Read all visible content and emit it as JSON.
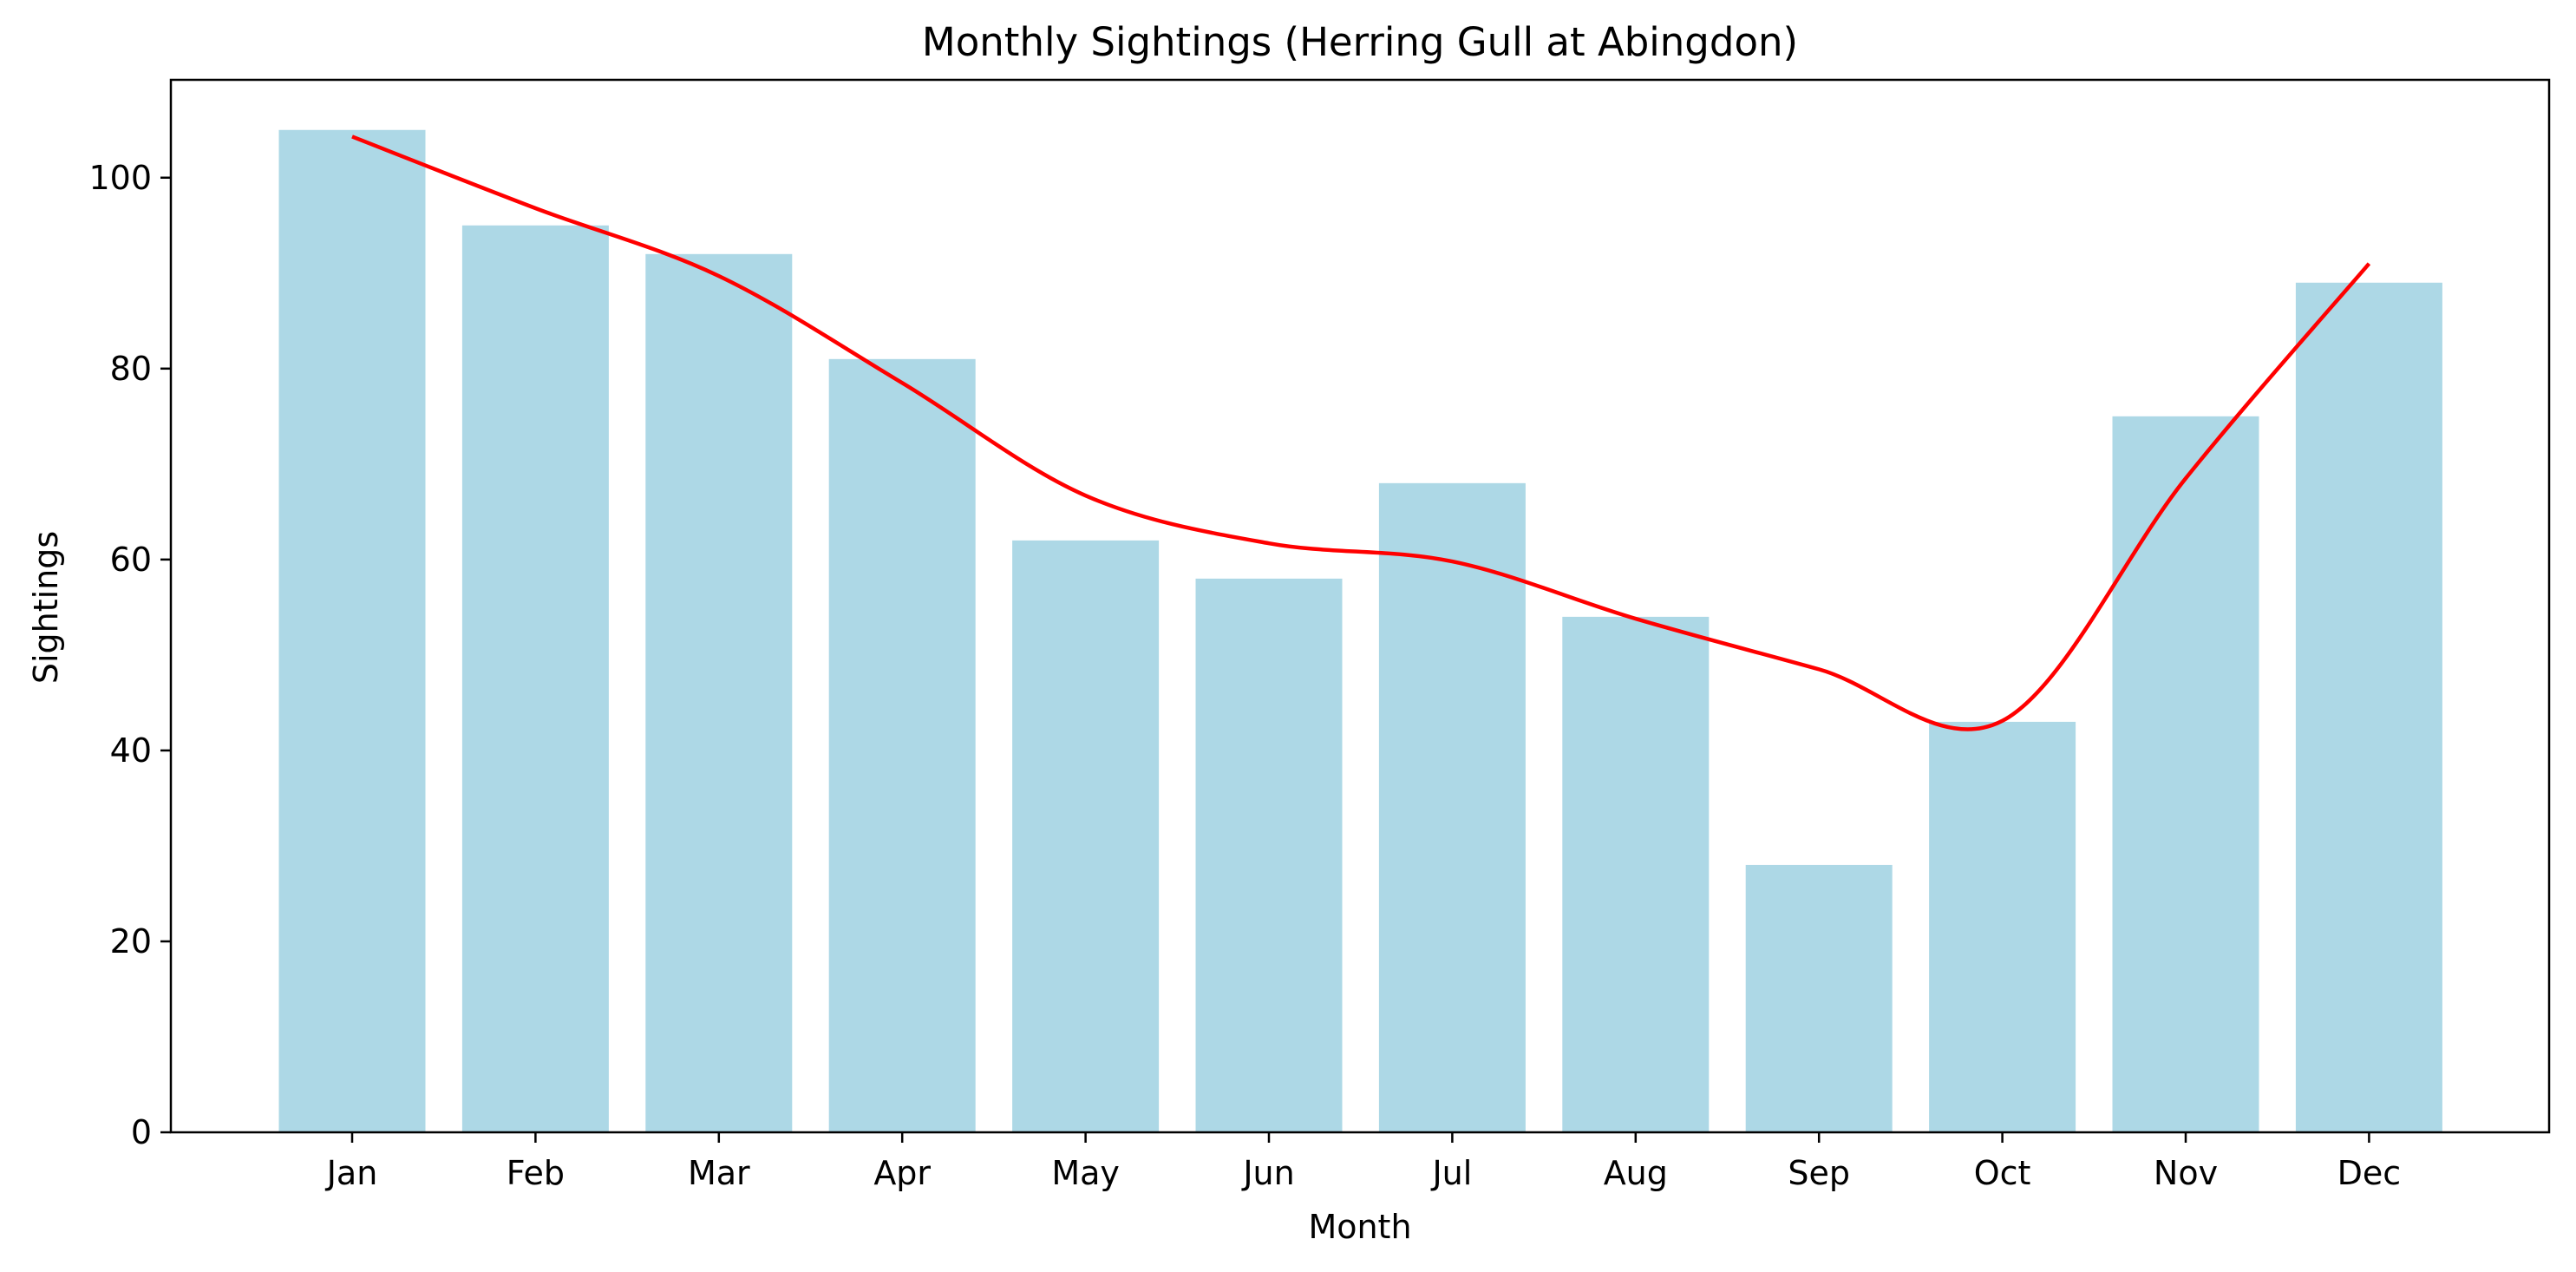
{
  "chart_data": {
    "type": "bar",
    "title": "Monthly Sightings (Herring Gull at Abingdon)",
    "xlabel": "Month",
    "ylabel": "Sightings",
    "categories": [
      "Jan",
      "Feb",
      "Mar",
      "Apr",
      "May",
      "Jun",
      "Jul",
      "Aug",
      "Sep",
      "Oct",
      "Nov",
      "Dec"
    ],
    "values": [
      105,
      95,
      92,
      81,
      62,
      58,
      68,
      54,
      28,
      43,
      75,
      89
    ],
    "trend": [
      104.3,
      96.8,
      89.7,
      78.5,
      66.7,
      61.7,
      59.8,
      53.8,
      48.5,
      43.1,
      68.5,
      91.0
    ],
    "ylim": [
      0,
      110.25
    ],
    "yticks": [
      0,
      20,
      40,
      60,
      80,
      100
    ],
    "grid": false,
    "legend": "none",
    "bar_color": "#add8e6",
    "line_color": "#ff0000"
  }
}
